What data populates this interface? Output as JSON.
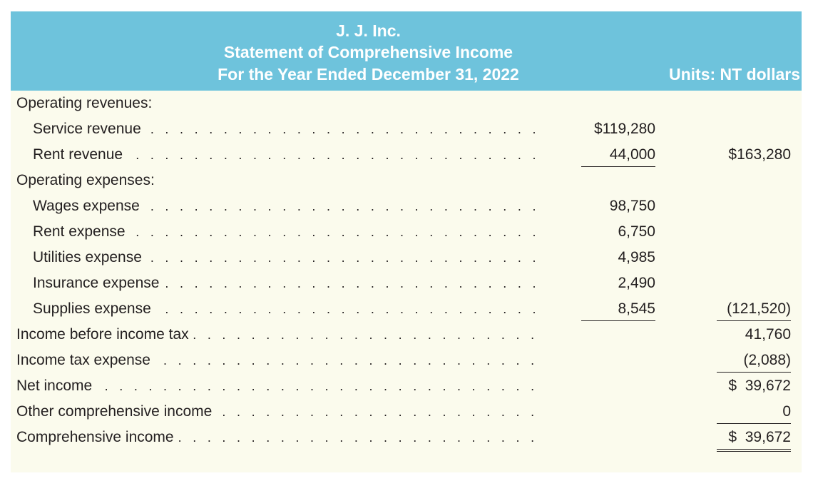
{
  "header": {
    "company": "J. J. Inc.",
    "statement": "Statement of Comprehensive Income",
    "period": "For the Year Ended December 31, 2022",
    "units": "Units: NT dollars"
  },
  "colors": {
    "header_bg": "#6ec3dc",
    "header_text": "#ffffff",
    "body_bg": "#fbfbed",
    "text": "#231f20"
  },
  "rows": [
    {
      "label": "Operating revenues:",
      "col1": "",
      "col2": ""
    },
    {
      "label": "Service revenue",
      "col1": "$119,280",
      "col2": ""
    },
    {
      "label": "Rent revenue",
      "col1": "44,000",
      "col2": "$163,280"
    },
    {
      "label": "Operating expenses:",
      "col1": "",
      "col2": ""
    },
    {
      "label": "Wages expense",
      "col1": "98,750",
      "col2": ""
    },
    {
      "label": "Rent expense",
      "col1": "6,750",
      "col2": ""
    },
    {
      "label": "Utilities expense",
      "col1": "4,985",
      "col2": ""
    },
    {
      "label": "Insurance expense",
      "col1": "2,490",
      "col2": ""
    },
    {
      "label": "Supplies expense",
      "col1": "8,545",
      "col2": "(121,520)"
    },
    {
      "label": "Income before income tax",
      "col1": "",
      "col2": "41,760"
    },
    {
      "label": "Income tax expense",
      "col1": "",
      "col2": "(2,088)"
    },
    {
      "label": "Net income",
      "col1": "",
      "col2": "$  39,672"
    },
    {
      "label": "Other comprehensive income",
      "col1": "",
      "col2": "0"
    },
    {
      "label": "Comprehensive income",
      "col1": "",
      "col2": "$  39,672"
    }
  ]
}
